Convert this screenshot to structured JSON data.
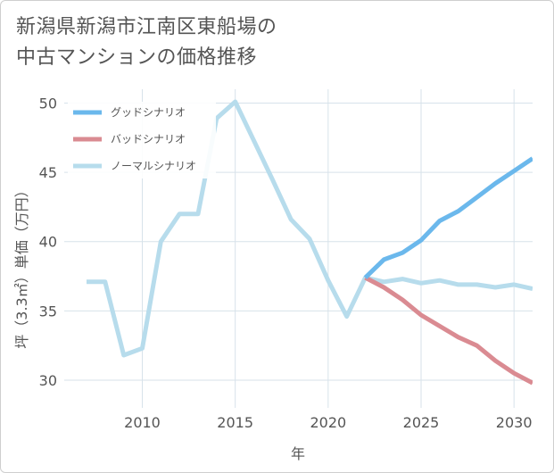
{
  "chart_data": {
    "type": "line",
    "title_lines": [
      "新潟県新潟市江南区東船場の",
      "中古マンションの価格推移"
    ],
    "xlabel": "年",
    "ylabel": "坪（3.3㎡）単価（万円）",
    "xlim": [
      2005.8,
      2031.0
    ],
    "ylim": [
      28.0,
      51.0
    ],
    "x_ticks": [
      2010,
      2015,
      2020,
      2025,
      2030
    ],
    "y_ticks": [
      30,
      35,
      40,
      45,
      50
    ],
    "grid": true,
    "legend_position": "top-left",
    "series": [
      {
        "name": "グッドシナリオ",
        "color": "#6bb8ec",
        "x": [
          2022,
          2023,
          2024,
          2025,
          2026,
          2027,
          2028,
          2029,
          2030,
          2031
        ],
        "y": [
          37.4,
          38.7,
          39.2,
          40.1,
          41.5,
          42.2,
          43.2,
          44.2,
          45.1,
          46.0
        ]
      },
      {
        "name": "バッドシナリオ",
        "color": "#da8b92",
        "x": [
          2022,
          2023,
          2024,
          2025,
          2026,
          2027,
          2028,
          2029,
          2030,
          2031
        ],
        "y": [
          37.4,
          36.7,
          35.8,
          34.7,
          33.9,
          33.1,
          32.5,
          31.4,
          30.5,
          29.8
        ]
      },
      {
        "name": "ノーマルシナリオ",
        "color": "#b7dcec",
        "x": [
          2007,
          2008,
          2009,
          2010,
          2011,
          2012,
          2013,
          2014,
          2015,
          2016,
          2017,
          2018,
          2019,
          2020,
          2021,
          2022,
          2023,
          2024,
          2025,
          2026,
          2027,
          2028,
          2029,
          2030,
          2031
        ],
        "y": [
          37.1,
          37.1,
          31.8,
          32.3,
          40.0,
          42.0,
          42.0,
          48.9,
          50.1,
          47.3,
          44.5,
          41.6,
          40.2,
          37.2,
          34.6,
          37.4,
          37.1,
          37.3,
          37.0,
          37.2,
          36.9,
          36.9,
          36.7,
          36.9,
          36.6
        ]
      }
    ]
  }
}
